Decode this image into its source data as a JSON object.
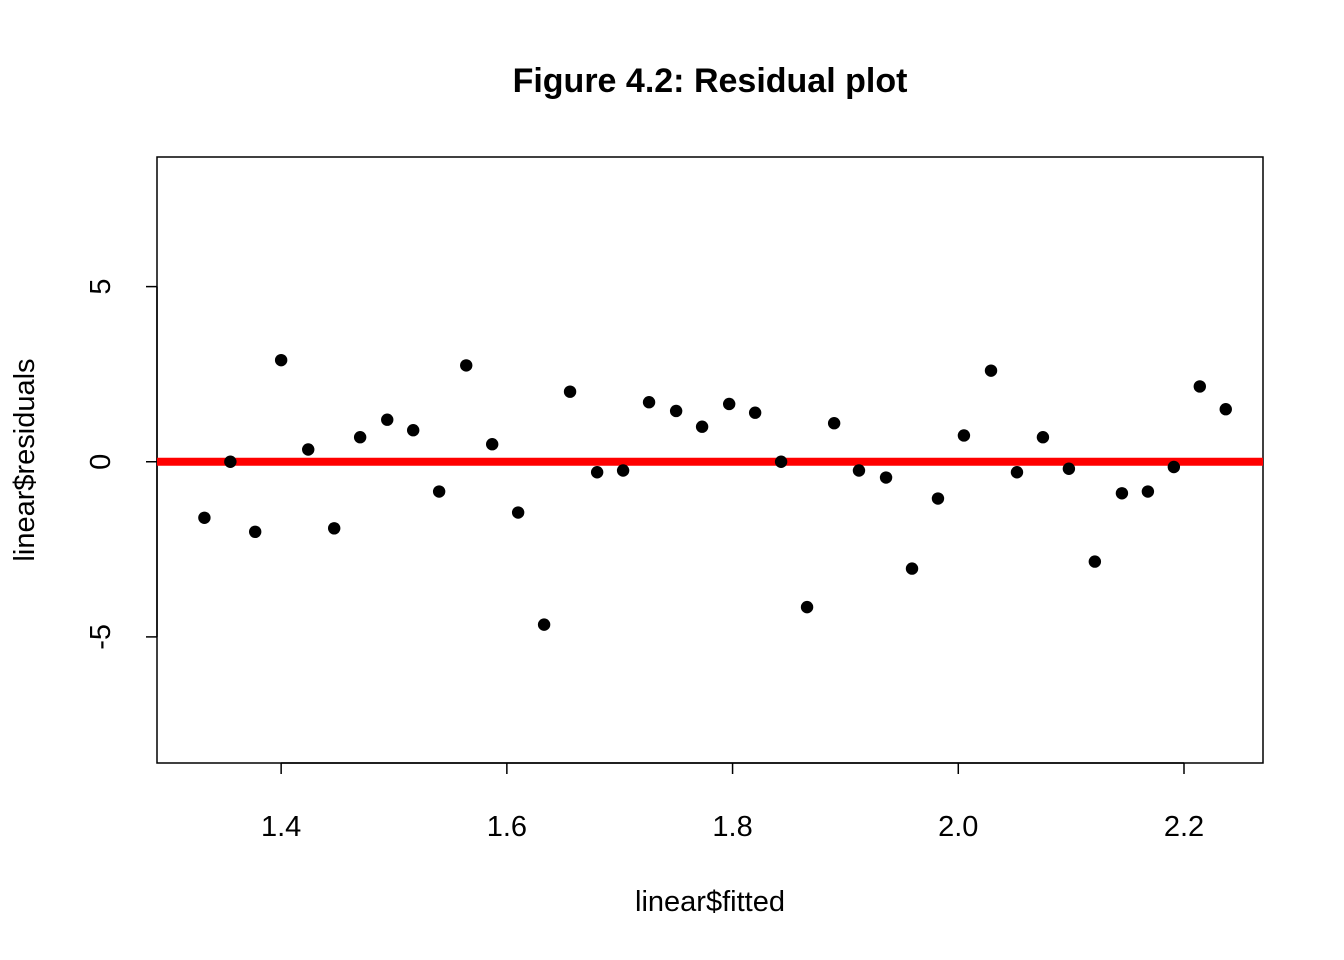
{
  "chart_data": {
    "type": "scatter",
    "title": "Figure 4.2: Residual plot",
    "xlabel": "linear$fitted",
    "ylabel": "linear$residuals",
    "xlim": [
      1.29,
      2.27
    ],
    "ylim": [
      -8.6,
      8.7
    ],
    "x_ticks": [
      1.4,
      1.6,
      1.8,
      2.0,
      2.2
    ],
    "x_tick_labels": [
      "1.4",
      "1.6",
      "1.8",
      "2.0",
      "2.2"
    ],
    "y_ticks": [
      -5,
      0,
      5
    ],
    "y_tick_labels": [
      "-5",
      "0",
      "5"
    ],
    "reference_line": {
      "y": 0,
      "color": "#ff0000"
    },
    "point_color": "#000000",
    "points": [
      {
        "x": 1.332,
        "y": -1.6
      },
      {
        "x": 1.355,
        "y": 0.0
      },
      {
        "x": 1.377,
        "y": -2.0
      },
      {
        "x": 1.4,
        "y": 2.9
      },
      {
        "x": 1.424,
        "y": 0.35
      },
      {
        "x": 1.447,
        "y": -1.9
      },
      {
        "x": 1.47,
        "y": 0.7
      },
      {
        "x": 1.494,
        "y": 1.2
      },
      {
        "x": 1.517,
        "y": 0.9
      },
      {
        "x": 1.54,
        "y": -0.85
      },
      {
        "x": 1.564,
        "y": 2.75
      },
      {
        "x": 1.587,
        "y": 0.5
      },
      {
        "x": 1.61,
        "y": -1.45
      },
      {
        "x": 1.633,
        "y": -4.65
      },
      {
        "x": 1.656,
        "y": 2.0
      },
      {
        "x": 1.68,
        "y": -0.3
      },
      {
        "x": 1.703,
        "y": -0.25
      },
      {
        "x": 1.726,
        "y": 1.7
      },
      {
        "x": 1.75,
        "y": 1.45
      },
      {
        "x": 1.773,
        "y": 1.0
      },
      {
        "x": 1.797,
        "y": 1.65
      },
      {
        "x": 1.82,
        "y": 1.4
      },
      {
        "x": 1.843,
        "y": 0.0
      },
      {
        "x": 1.866,
        "y": -4.15
      },
      {
        "x": 1.89,
        "y": 1.1
      },
      {
        "x": 1.912,
        "y": -0.25
      },
      {
        "x": 1.936,
        "y": -0.45
      },
      {
        "x": 1.959,
        "y": -3.05
      },
      {
        "x": 1.982,
        "y": -1.05
      },
      {
        "x": 2.005,
        "y": 0.75
      },
      {
        "x": 2.029,
        "y": 2.6
      },
      {
        "x": 2.052,
        "y": -0.3
      },
      {
        "x": 2.075,
        "y": 0.7
      },
      {
        "x": 2.098,
        "y": -0.2
      },
      {
        "x": 2.121,
        "y": -2.85
      },
      {
        "x": 2.145,
        "y": -0.9
      },
      {
        "x": 2.168,
        "y": -0.85
      },
      {
        "x": 2.191,
        "y": -0.15
      },
      {
        "x": 2.214,
        "y": 2.15
      },
      {
        "x": 2.237,
        "y": 1.5
      }
    ]
  }
}
